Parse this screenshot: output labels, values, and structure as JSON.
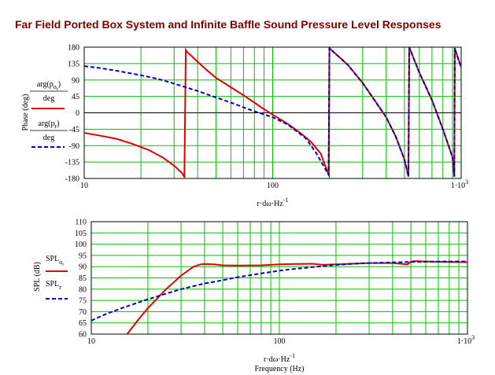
{
  "title": "Far Field Ported Box System and Infinite Baffle Sound Pressure Level Responses",
  "colors": {
    "grid": "#00c000",
    "axis": "#000000",
    "series_ported": "#e00000",
    "series_baffle": "#0000c0"
  },
  "chart_data": [
    {
      "type": "line",
      "x_scale": "log",
      "xlim": [
        10,
        1000
      ],
      "ylim": [
        -180,
        180
      ],
      "x_ticks": [
        "10",
        "100",
        "1·10"
      ],
      "x_ticks_sup": [
        "",
        "",
        "3"
      ],
      "y_ticks": [
        "180",
        "135",
        "90",
        "45",
        "0",
        "-45",
        "-90",
        "-135",
        "-180"
      ],
      "y_tick_values": [
        180,
        135,
        90,
        45,
        0,
        -45,
        -90,
        -135,
        -180
      ],
      "xlabel": "r·dω·Hz",
      "xlabel_sup": "-1",
      "ylabel": "Phase (deg)",
      "legend": [
        {
          "numerator": "arg(p",
          "sub": "o",
          "sub2": "r",
          "tail": ")",
          "denominator": "deg"
        },
        {
          "numerator": "arg(p",
          "sub": "r",
          "sub2": "",
          "tail": ")",
          "denominator": "deg"
        }
      ],
      "series": [
        {
          "style": "solid",
          "color": "#e00000",
          "x": [
            10,
            12,
            15,
            18,
            22,
            26,
            30,
            33,
            34,
            34.6,
            35,
            40,
            45,
            50,
            60,
            70,
            80,
            90,
            100,
            120,
            140,
            160,
            180,
            198,
            200,
            202,
            250,
            300,
            350,
            400,
            450,
            500,
            525,
            530,
            535,
            600,
            700,
            800,
            900,
            920,
            925,
            930,
            1000
          ],
          "y": [
            -55,
            -62,
            -72,
            -85,
            -102,
            -122,
            -145,
            -165,
            -176,
            172,
            168,
            140,
            116,
            96,
            70,
            48,
            28,
            10,
            -5,
            -30,
            -55,
            -80,
            -112,
            -170,
            178,
            175,
            132,
            82,
            32,
            -12,
            -65,
            -128,
            -175,
            178,
            175,
            110,
            35,
            -45,
            -122,
            -175,
            178,
            172,
            125
          ]
        },
        {
          "style": "dashed",
          "color": "#0000c0",
          "x": [
            10,
            12,
            15,
            20,
            25,
            30,
            40,
            50,
            60,
            70,
            80,
            100,
            120,
            150,
            170,
            198,
            200,
            202,
            250,
            300,
            350,
            400,
            450,
            500,
            525,
            530,
            535,
            600,
            700,
            800,
            900,
            920,
            925,
            930,
            1000
          ],
          "y": [
            128,
            123,
            115,
            103,
            92,
            80,
            60,
            42,
            28,
            15,
            4,
            -12,
            -32,
            -70,
            -110,
            -170,
            178,
            175,
            132,
            82,
            32,
            -12,
            -65,
            -128,
            -175,
            178,
            175,
            110,
            35,
            -45,
            -122,
            -175,
            178,
            172,
            125
          ]
        }
      ]
    },
    {
      "type": "line",
      "x_scale": "log",
      "xlim": [
        10,
        1000
      ],
      "ylim": [
        60,
        110
      ],
      "x_ticks": [
        "10",
        "100",
        "1·10"
      ],
      "x_ticks_sup": [
        "",
        "",
        "3"
      ],
      "y_ticks": [
        "110",
        "105",
        "100",
        "95",
        "90",
        "85",
        "80",
        "75",
        "70",
        "65",
        "60"
      ],
      "y_tick_values": [
        110,
        105,
        100,
        95,
        90,
        85,
        80,
        75,
        70,
        65,
        60
      ],
      "xlabel": "r·dω·Hz",
      "xlabel_sup": "-1",
      "xlabel2": "Frequency (Hz)",
      "ylabel": "SPL (dB)",
      "legend": [
        {
          "label": "SPL",
          "sub": "o",
          "sub2": "r"
        },
        {
          "label": "SPL",
          "sub": "r",
          "sub2": ""
        }
      ],
      "series": [
        {
          "style": "solid",
          "color": "#e00000",
          "x": [
            15.5,
            18,
            20,
            25,
            30,
            35,
            38,
            40,
            45,
            50,
            60,
            80,
            100,
            120,
            150,
            170,
            200,
            300,
            400,
            480,
            500,
            520,
            600,
            800,
            1000
          ],
          "y": [
            60,
            67,
            71.5,
            80,
            86,
            90,
            91,
            91.2,
            91,
            90.6,
            90.5,
            90.6,
            91,
            91.2,
            91.3,
            90.8,
            91,
            91.6,
            91.6,
            91,
            92.2,
            92.5,
            92.3,
            92.1,
            92
          ]
        },
        {
          "style": "dashed",
          "color": "#0000c0",
          "x": [
            10,
            12,
            15,
            20,
            25,
            30,
            40,
            50,
            60,
            80,
            100,
            120,
            150,
            200,
            250,
            300,
            400,
            500,
            600,
            800,
            1000
          ],
          "y": [
            66,
            69,
            72,
            75.5,
            78,
            80,
            82.5,
            84,
            85.3,
            87,
            88.2,
            89,
            89.8,
            90.8,
            91.3,
            91.6,
            91.9,
            92.1,
            92.2,
            92.3,
            92.3
          ]
        }
      ]
    }
  ]
}
